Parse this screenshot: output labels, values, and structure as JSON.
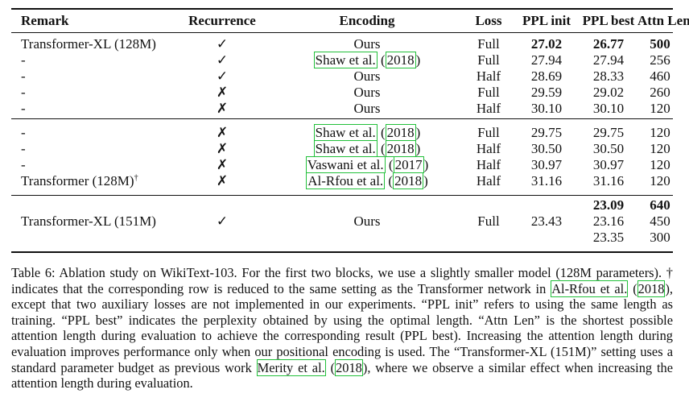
{
  "table": {
    "headers": [
      "Remark",
      "Recurrence",
      "Encoding",
      "Loss",
      "PPL init",
      "PPL best",
      "Attn Len"
    ],
    "block1": [
      {
        "remark": "Transformer-XL (128M)",
        "rec": "✓",
        "enc": "Ours",
        "loss": "Full",
        "ppl_init": "27.02",
        "ppl_best": "26.77",
        "attn": "500"
      },
      {
        "remark": "-",
        "rec": "✓",
        "enc_cite_a": "Shaw et al.",
        "enc_cite_b": "2018",
        "loss": "Full",
        "ppl_init": "27.94",
        "ppl_best": "27.94",
        "attn": "256"
      },
      {
        "remark": "-",
        "rec": "✓",
        "enc": "Ours",
        "loss": "Half",
        "ppl_init": "28.69",
        "ppl_best": "28.33",
        "attn": "460"
      },
      {
        "remark": "-",
        "rec": "✗",
        "enc": "Ours",
        "loss": "Full",
        "ppl_init": "29.59",
        "ppl_best": "29.02",
        "attn": "260"
      },
      {
        "remark": "-",
        "rec": "✗",
        "enc": "Ours",
        "loss": "Half",
        "ppl_init": "30.10",
        "ppl_best": "30.10",
        "attn": "120"
      }
    ],
    "block2": [
      {
        "remark": "-",
        "rec": "✗",
        "enc_cite_a": "Shaw et al.",
        "enc_cite_b": "2018",
        "loss": "Full",
        "ppl_init": "29.75",
        "ppl_best": "29.75",
        "attn": "120"
      },
      {
        "remark": "-",
        "rec": "✗",
        "enc_cite_a": "Shaw et al.",
        "enc_cite_b": "2018",
        "loss": "Half",
        "ppl_init": "30.50",
        "ppl_best": "30.50",
        "attn": "120"
      },
      {
        "remark": "-",
        "rec": "✗",
        "enc_cite_a": "Vaswani et al.",
        "enc_cite_b": "2017",
        "loss": "Half",
        "ppl_init": "30.97",
        "ppl_best": "30.97",
        "attn": "120"
      },
      {
        "remark": "Transformer (128M)",
        "remark_sup": "†",
        "rec": "✗",
        "enc_cite_a": "Al-Rfou et al.",
        "enc_cite_b": "2018",
        "loss": "Half",
        "ppl_init": "31.16",
        "ppl_best": "31.16",
        "attn": "120"
      }
    ],
    "block3": {
      "remark": "Transformer-XL (151M)",
      "rec": "✓",
      "enc": "Ours",
      "loss": "Full",
      "ppl_init": "23.43",
      "ppl_best": [
        "23.09",
        "23.16",
        "23.35"
      ],
      "attn": [
        "640",
        "450",
        "300"
      ]
    }
  },
  "caption": {
    "p1": "Table 6: Ablation study on WikiText-103. For the first two blocks, we use a slightly smaller model (128M parameters). † indicates that the corresponding row is reduced to the same setting as the Transformer network in ",
    "cite1a": "Al-Rfou et al.",
    "cite1b": "2018",
    "p2": "), except that two auxiliary losses are not implemented in our experiments. “PPL init” refers to using the same length as training. “PPL best” indicates the perplexity obtained by using the optimal length. “Attn Len” is the shortest possible attention length during evaluation to achieve the corresponding result (PPL best). Increasing the attention length during evaluation improves performance only when our positional encoding is used. The “Transformer-XL (151M)” setting uses a standard parameter budget as previous work ",
    "cite2a": "Merity et al.",
    "cite2b": "2018",
    "p3": "), where we observe a similar effect when increasing the attention length during evaluation."
  }
}
